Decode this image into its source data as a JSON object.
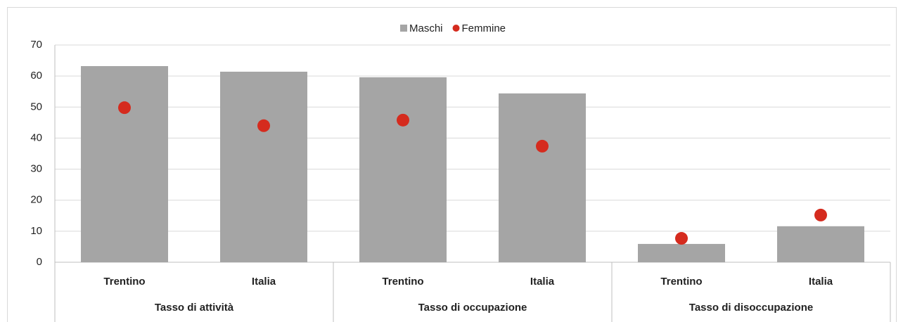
{
  "chart_data": {
    "type": "bar",
    "categories": [
      "Trentino",
      "Italia",
      "Trentino",
      "Italia",
      "Trentino",
      "Italia"
    ],
    "groups": [
      "Tasso di attività",
      "Tasso di occupazione",
      "Tasso di disoccupazione"
    ],
    "series": [
      {
        "name": "Maschi",
        "type": "bar",
        "color": "#a5a5a5",
        "values": [
          63.2,
          61.4,
          59.6,
          54.4,
          5.9,
          11.6
        ]
      },
      {
        "name": "Femmine",
        "type": "scatter",
        "color": "#d52b1e",
        "values": [
          49.8,
          44.0,
          45.8,
          37.4,
          7.7,
          15.2
        ]
      }
    ],
    "ylim": [
      0,
      70
    ],
    "yticks": [
      0,
      10,
      20,
      30,
      40,
      50,
      60,
      70
    ],
    "grid": true,
    "legend": "top"
  }
}
